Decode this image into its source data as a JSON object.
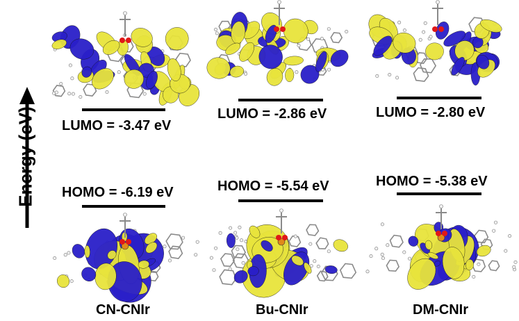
{
  "axis": {
    "label": "Energy (eV)"
  },
  "compounds": [
    {
      "name": "CN-CNIr",
      "lumo_label": "LUMO = -3.47 eV",
      "homo_label": "HOMO = -6.19 eV",
      "lumo": -3.47,
      "homo": -6.19
    },
    {
      "name": "Bu-CNIr",
      "lumo_label": "LUMO = -2.86 eV",
      "homo_label": "HOMO = -5.54 eV",
      "lumo": -2.86,
      "homo": -5.54
    },
    {
      "name": "DM-CNIr",
      "lumo_label": "LUMO = -2.80 eV",
      "homo_label": "HOMO = -5.38 eV",
      "lumo": -2.8,
      "homo": -5.38
    }
  ],
  "colors": {
    "positive_lobe": "#e8e43c",
    "negative_lobe": "#2a1fc9",
    "oxygen": "#e01818",
    "iridium": "#e08a1a",
    "bond": "#8a8a8a",
    "hydrogen": "#f2f2f2"
  }
}
